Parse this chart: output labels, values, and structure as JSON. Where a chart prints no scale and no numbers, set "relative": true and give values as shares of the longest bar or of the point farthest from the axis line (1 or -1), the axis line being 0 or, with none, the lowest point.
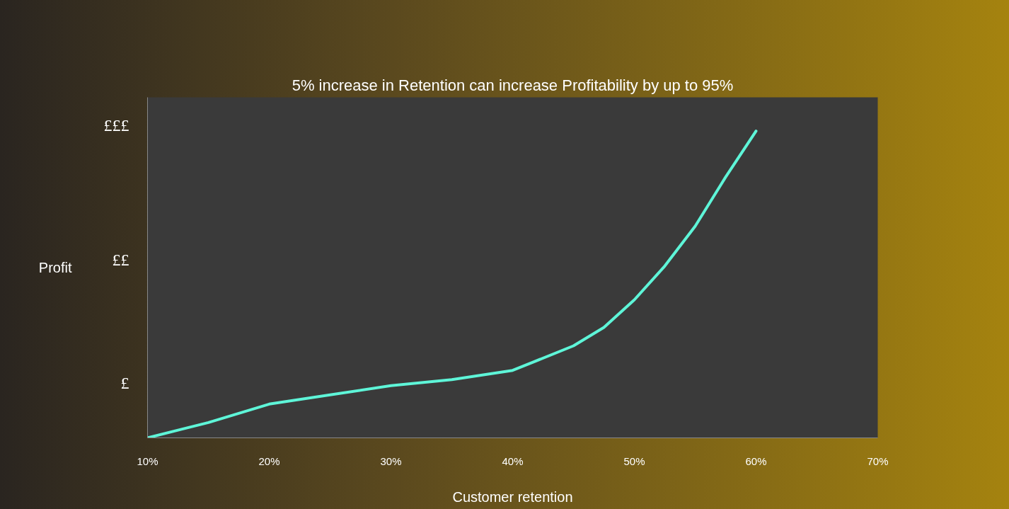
{
  "chart_data": {
    "type": "line",
    "title": "5% increase in Retention can increase Profitability by up to 95%",
    "xlabel": "Customer retention",
    "ylabel": "Profit",
    "relative": true,
    "x": [
      10,
      15,
      20,
      25,
      30,
      35,
      40,
      45,
      47.5,
      50,
      52.5,
      55,
      57.5,
      60
    ],
    "series": [
      {
        "color": "#5ef5d8",
        "values": [
          0,
          0.05,
          0.11,
          0.14,
          0.17,
          0.19,
          0.22,
          0.3,
          0.36,
          0.45,
          0.56,
          0.69,
          0.85,
          1.0
        ]
      }
    ],
    "xlim": [
      10,
      70
    ],
    "xticks": [
      {
        "value": 10,
        "label": "10%"
      },
      {
        "value": 20,
        "label": "20%"
      },
      {
        "value": 30,
        "label": "30%"
      },
      {
        "value": 40,
        "label": "40%"
      },
      {
        "value": 50,
        "label": "50%"
      },
      {
        "value": 60,
        "label": "60%"
      },
      {
        "value": 70,
        "label": "70%"
      }
    ],
    "annotations": [
      "£",
      "££",
      "£££"
    ],
    "grid": false,
    "marker": "none",
    "line_style": "solid"
  }
}
